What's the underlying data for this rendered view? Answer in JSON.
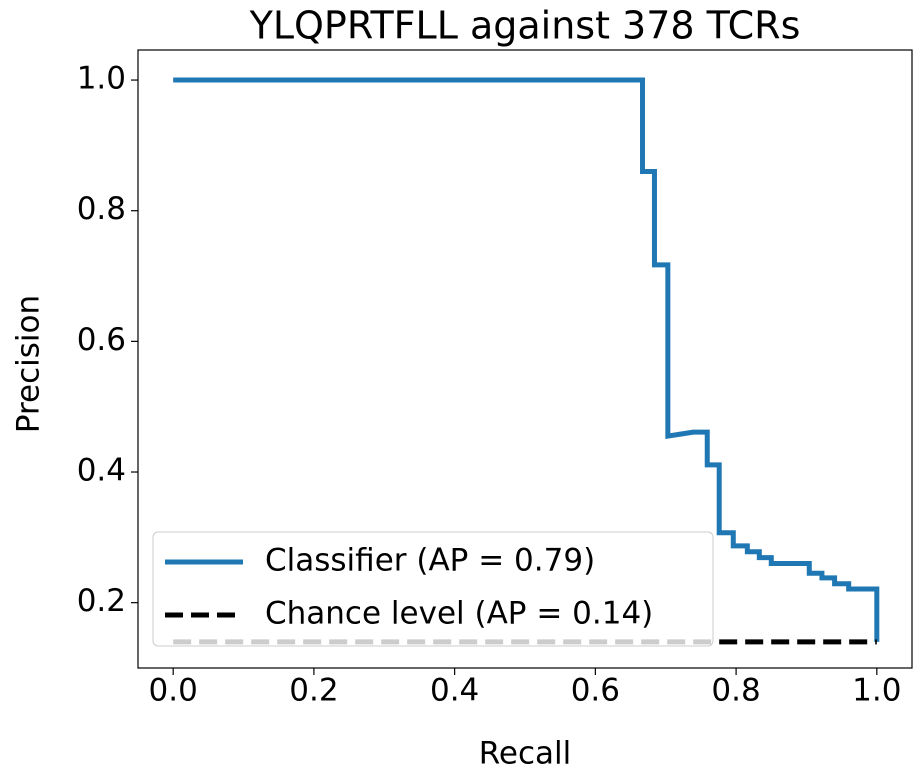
{
  "chart_data": {
    "type": "line",
    "title": "YLQPRTFLL against 378 TCRs",
    "x_label": "Recall",
    "y_label": "Precision",
    "xlim": [
      -0.05,
      1.05
    ],
    "ylim": [
      0.1,
      1.046
    ],
    "xticks": [
      {
        "value": 0,
        "label": "0.0"
      },
      0.2,
      0.4,
      0.6,
      0.8,
      {
        "value": 1,
        "label": "1.0"
      }
    ],
    "yticks": [
      0.2,
      0.4,
      0.6,
      0.8,
      {
        "value": 1,
        "label": "1.0"
      }
    ],
    "legend": "lower left",
    "series": [
      {
        "name": "Classifier (AP = 0.79)",
        "color": "#1f77b4",
        "dash": "solid",
        "x": [
          0,
          0.667,
          0.667,
          0.684,
          0.684,
          0.703,
          0.703,
          0.721,
          0.739,
          0.759,
          0.759,
          0.776,
          0.776,
          0.796,
          0.796,
          0.816,
          0.816,
          0.833,
          0.833,
          0.85,
          0.85,
          0.904,
          0.904,
          0.922,
          0.922,
          0.94,
          0.94,
          0.96,
          0.96,
          1,
          1
        ],
        "values": [
          1,
          1,
          0.86,
          0.86,
          0.717,
          0.717,
          0.455,
          0.458,
          0.461,
          0.461,
          0.411,
          0.411,
          0.307,
          0.307,
          0.287,
          0.287,
          0.278,
          0.278,
          0.269,
          0.269,
          0.26,
          0.26,
          0.245,
          0.245,
          0.238,
          0.238,
          0.229,
          0.229,
          0.221,
          0.221,
          0.14
        ]
      },
      {
        "name": "Chance level (AP = 0.14)",
        "color": "#000000",
        "dash": "dashed",
        "x": [
          0,
          1
        ],
        "values": [
          0.14,
          0.14
        ]
      }
    ]
  }
}
